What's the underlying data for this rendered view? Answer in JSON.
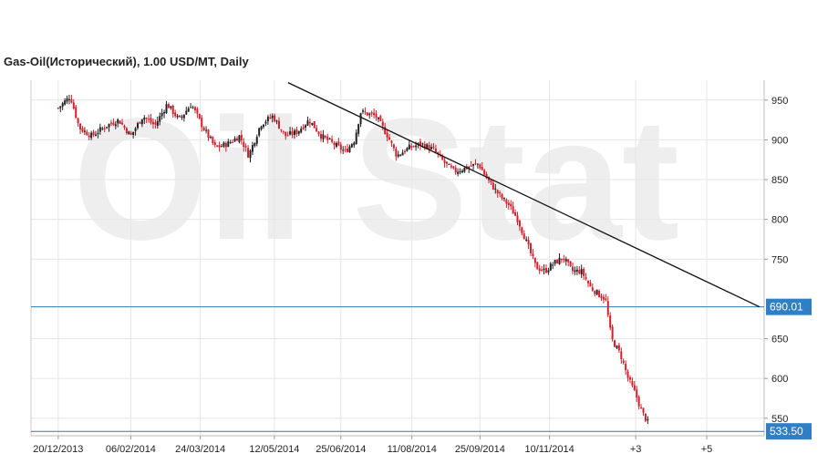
{
  "chart_data": {
    "type": "candlestick",
    "title": "Gas-Oil(Исторический), 1.00 USD/MT, Daily",
    "watermark": "Oil Stat",
    "colors": {
      "up": "#222222",
      "down": "#d81e2a",
      "grid": "#e6e6e6",
      "level": "#2a7ab8",
      "level_label_bg": "#2f7fc4",
      "trend": "#111111"
    },
    "ylim": [
      528,
      975
    ],
    "y_ticks": [
      950,
      900,
      850,
      800,
      750,
      650,
      600,
      550
    ],
    "x_ticks": [
      {
        "day": 0,
        "label": "20/12/2013"
      },
      {
        "day": 48,
        "label": "06/02/2014"
      },
      {
        "day": 94,
        "label": "24/03/2014"
      },
      {
        "day": 143,
        "label": "12/05/2014"
      },
      {
        "day": 187,
        "label": "25/06/2014"
      },
      {
        "day": 234,
        "label": "11/08/2014"
      },
      {
        "day": 279,
        "label": "25/09/2014"
      },
      {
        "day": 325,
        "label": "10/11/2014"
      },
      {
        "day": 382,
        "label": "+3"
      },
      {
        "day": 429,
        "label": "+5"
      }
    ],
    "xlim": [
      -18,
      467
    ],
    "horizontal_levels": [
      {
        "value": 690.01,
        "label": "690.01"
      },
      {
        "value": 533.5,
        "label": "533.50"
      }
    ],
    "trendline": {
      "from": {
        "day": 152,
        "value": 972
      },
      "to": {
        "day": 464,
        "value": 690
      }
    },
    "anchors": [
      [
        0,
        940
      ],
      [
        8,
        955
      ],
      [
        14,
        915
      ],
      [
        22,
        905
      ],
      [
        32,
        918
      ],
      [
        40,
        925
      ],
      [
        48,
        905
      ],
      [
        56,
        930
      ],
      [
        64,
        918
      ],
      [
        72,
        945
      ],
      [
        80,
        925
      ],
      [
        88,
        945
      ],
      [
        96,
        915
      ],
      [
        104,
        890
      ],
      [
        112,
        895
      ],
      [
        120,
        905
      ],
      [
        126,
        880
      ],
      [
        134,
        920
      ],
      [
        142,
        930
      ],
      [
        150,
        905
      ],
      [
        158,
        910
      ],
      [
        166,
        925
      ],
      [
        174,
        905
      ],
      [
        182,
        895
      ],
      [
        190,
        885
      ],
      [
        196,
        900
      ],
      [
        200,
        935
      ],
      [
        210,
        930
      ],
      [
        218,
        905
      ],
      [
        224,
        880
      ],
      [
        232,
        890
      ],
      [
        240,
        895
      ],
      [
        248,
        888
      ],
      [
        256,
        870
      ],
      [
        262,
        860
      ],
      [
        270,
        865
      ],
      [
        278,
        870
      ],
      [
        284,
        850
      ],
      [
        292,
        830
      ],
      [
        298,
        818
      ],
      [
        304,
        800
      ],
      [
        310,
        770
      ],
      [
        316,
        740
      ],
      [
        322,
        735
      ],
      [
        328,
        745
      ],
      [
        334,
        752
      ],
      [
        340,
        735
      ],
      [
        346,
        735
      ],
      [
        352,
        715
      ],
      [
        358,
        705
      ],
      [
        362,
        700
      ],
      [
        366,
        650
      ],
      [
        372,
        630
      ],
      [
        377,
        600
      ],
      [
        382,
        580
      ],
      [
        386,
        558
      ],
      [
        390,
        545
      ]
    ],
    "candle_count": 268
  }
}
